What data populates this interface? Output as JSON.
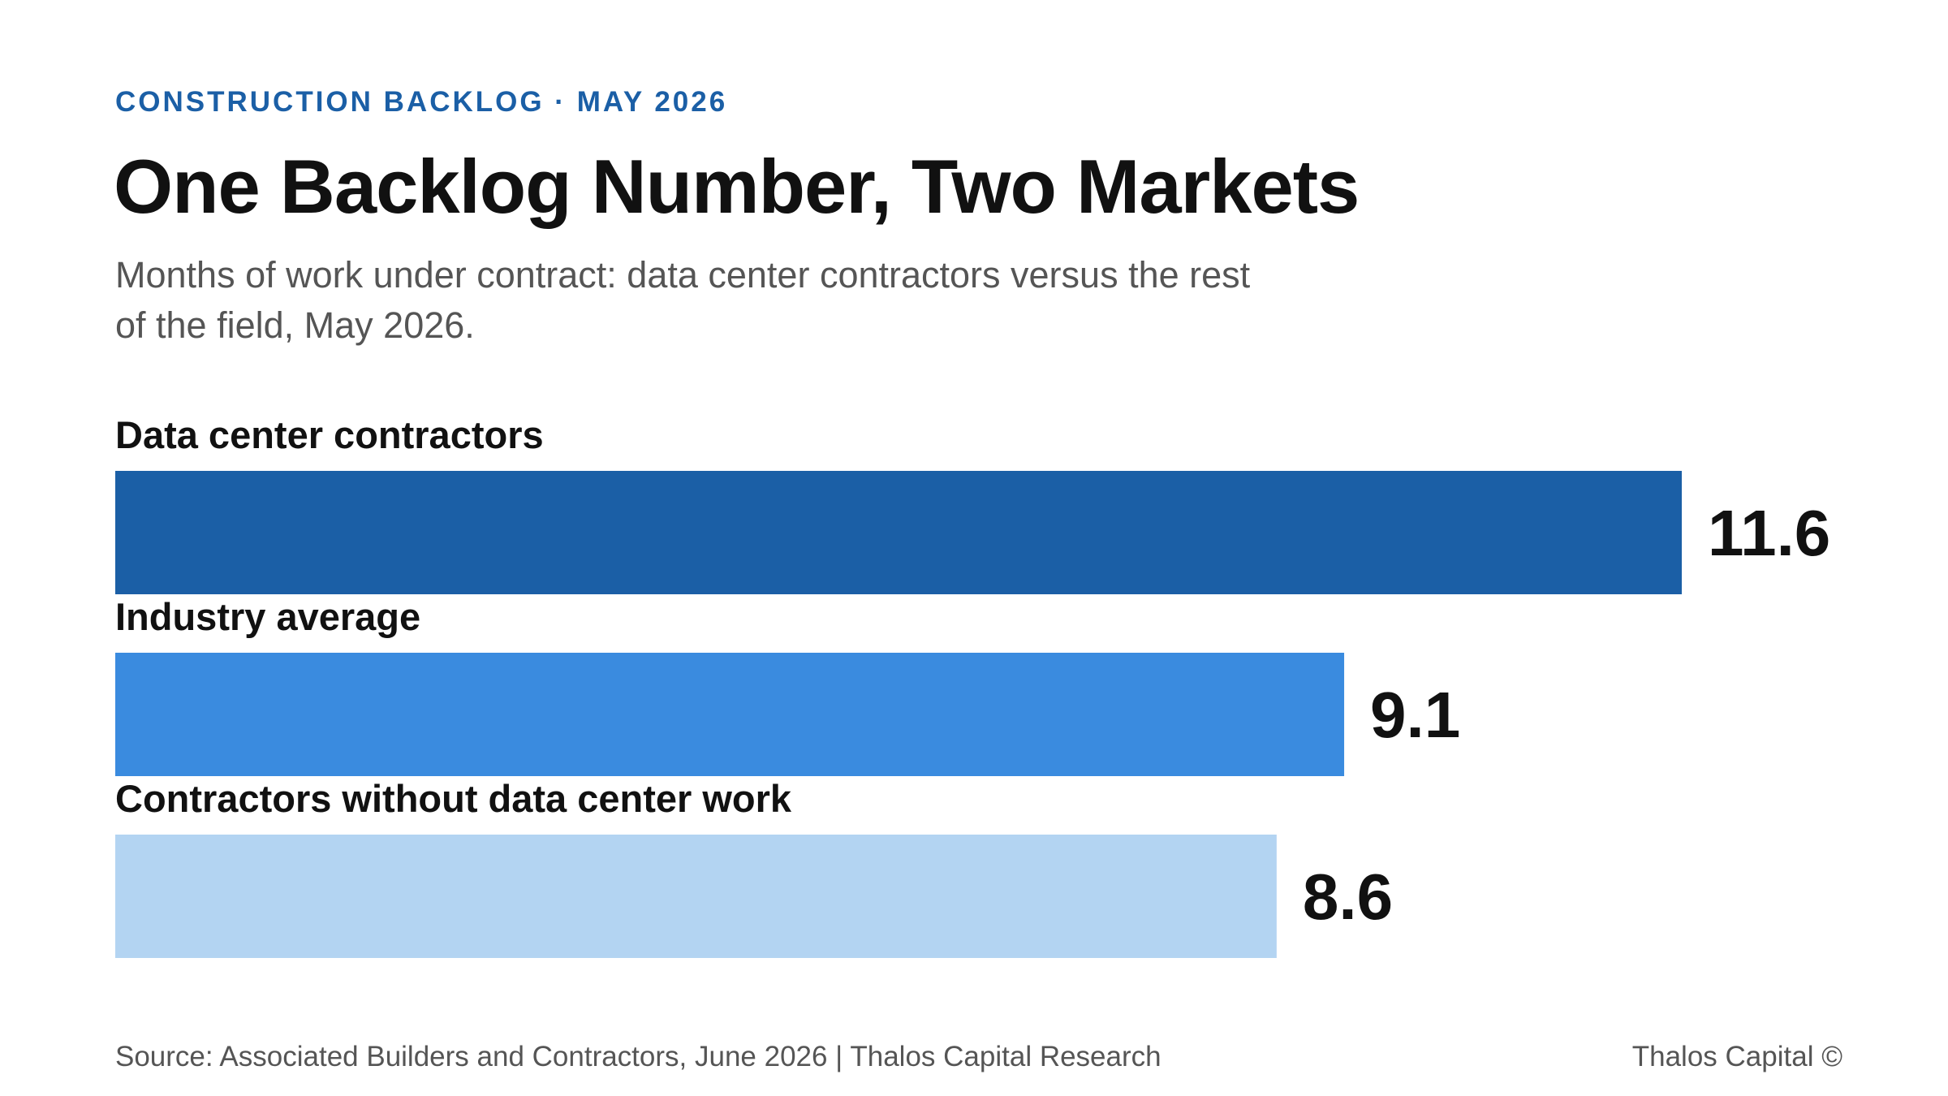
{
  "header": {
    "eyebrow": "CONSTRUCTION BACKLOG · MAY 2026",
    "title": "One Backlog Number, Two Markets",
    "subtitle": "Months of work under contract: data center contractors versus the rest of the field, May 2026."
  },
  "chart_data": {
    "type": "bar",
    "orientation": "horizontal",
    "categories": [
      "Data center contractors",
      "Industry average",
      "Contractors without data center work"
    ],
    "values": [
      11.6,
      9.1,
      8.6
    ],
    "value_labels": [
      "11.6",
      "9.1",
      "8.6"
    ],
    "colors": [
      "#1b5fa6",
      "#3a8bdf",
      "#b3d4f2"
    ],
    "title": "One Backlog Number, Two Markets",
    "xlabel": "",
    "ylabel": "",
    "xlim": [
      0,
      11.6
    ],
    "grid": false,
    "legend": "none"
  },
  "footer": {
    "source": "Source: Associated Builders and Contractors, June 2026 | Thalos Capital Research",
    "brand": "Thalos Capital ©"
  }
}
